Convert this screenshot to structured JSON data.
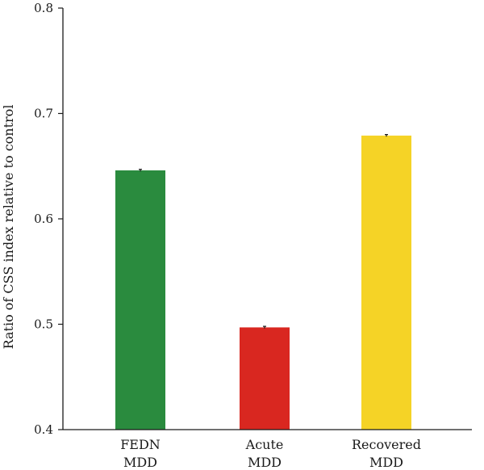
{
  "chart_data": {
    "type": "bar",
    "categories": [
      [
        "FEDN",
        "MDD"
      ],
      [
        "Acute",
        "MDD"
      ],
      [
        "Recovered",
        "MDD"
      ]
    ],
    "values": [
      0.646,
      0.497,
      0.679
    ],
    "error": [
      0.001,
      0.001,
      0.001
    ],
    "colors": [
      "#2a8b3e",
      "#d92720",
      "#f5d326"
    ],
    "ylabel": "Ratio of CSS index relative to control",
    "xlabel": "",
    "ylim": [
      0.4,
      0.8
    ],
    "yticks": [
      0.4,
      0.5,
      0.6,
      0.7,
      0.8
    ],
    "ytick_labels": [
      "0.4",
      "0.5",
      "0.6",
      "0.7",
      "0.8"
    ],
    "grid": false,
    "legend": "none"
  }
}
